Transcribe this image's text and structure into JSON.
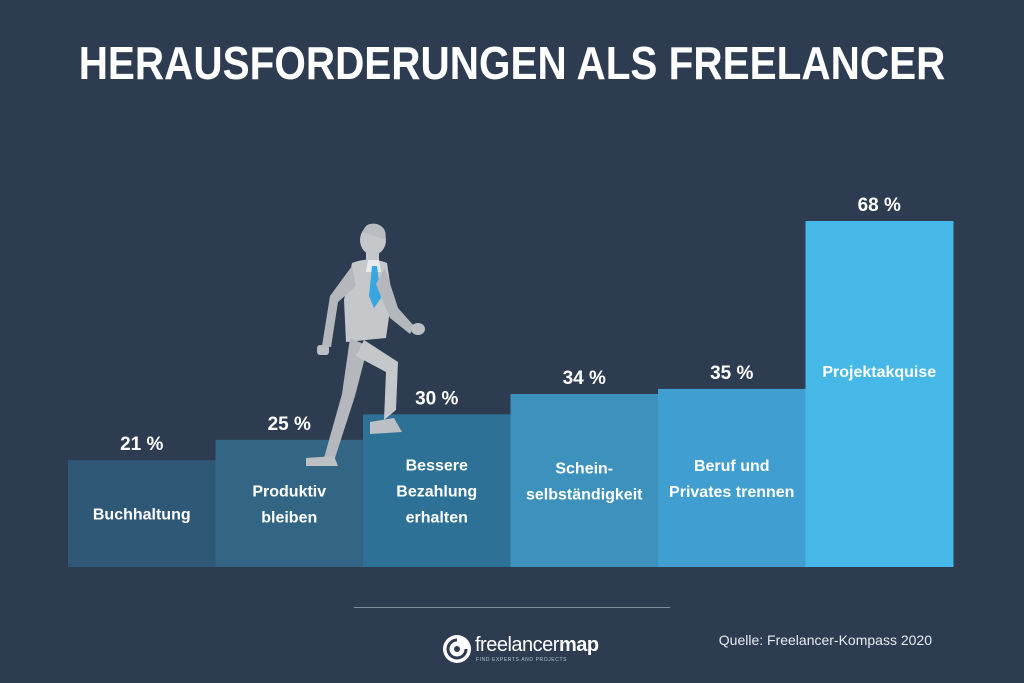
{
  "chart_data": {
    "type": "bar",
    "title": "HERAUSFORDERUNGEN ALS FREELANCER",
    "categories": [
      "Buchhaltung",
      "Produktiv bleiben",
      "Bessere Bezahlung erhalten",
      "Schein-selbständigkeit",
      "Beruf und Privates trennen",
      "Projektakquise"
    ],
    "category_lines": [
      [
        "Buchhaltung"
      ],
      [
        "Produktiv",
        "bleiben"
      ],
      [
        "Bessere",
        "Bezahlung",
        "erhalten"
      ],
      [
        "Schein-",
        "selbständigkeit"
      ],
      [
        "Beruf und",
        "Privates trennen"
      ],
      [
        "Projektakquise"
      ]
    ],
    "values": [
      21,
      25,
      30,
      34,
      35,
      68
    ],
    "value_labels": [
      "21 %",
      "25 %",
      "30 %",
      "34 %",
      "35 %",
      "68 %"
    ],
    "unit": "%",
    "ylim": [
      0,
      68
    ],
    "grid": false,
    "colors": [
      "#2f5776",
      "#336685",
      "#2e7197",
      "#3c92bd",
      "#409fd0",
      "#45b8e8"
    ]
  },
  "source": "Quelle: Freelancer-Kompass 2020",
  "logo": {
    "name_regular": "freelancer",
    "name_bold": "map",
    "tagline": "FIND EXPERTS AND PROJECTS"
  },
  "colors": {
    "background": "#2d3c50",
    "text": "#ffffff",
    "tie": "#3aa6df",
    "figure": "#c5c8cb"
  },
  "icons": [
    "walking-businessman-illustration",
    "freelancermap-logo-icon"
  ]
}
